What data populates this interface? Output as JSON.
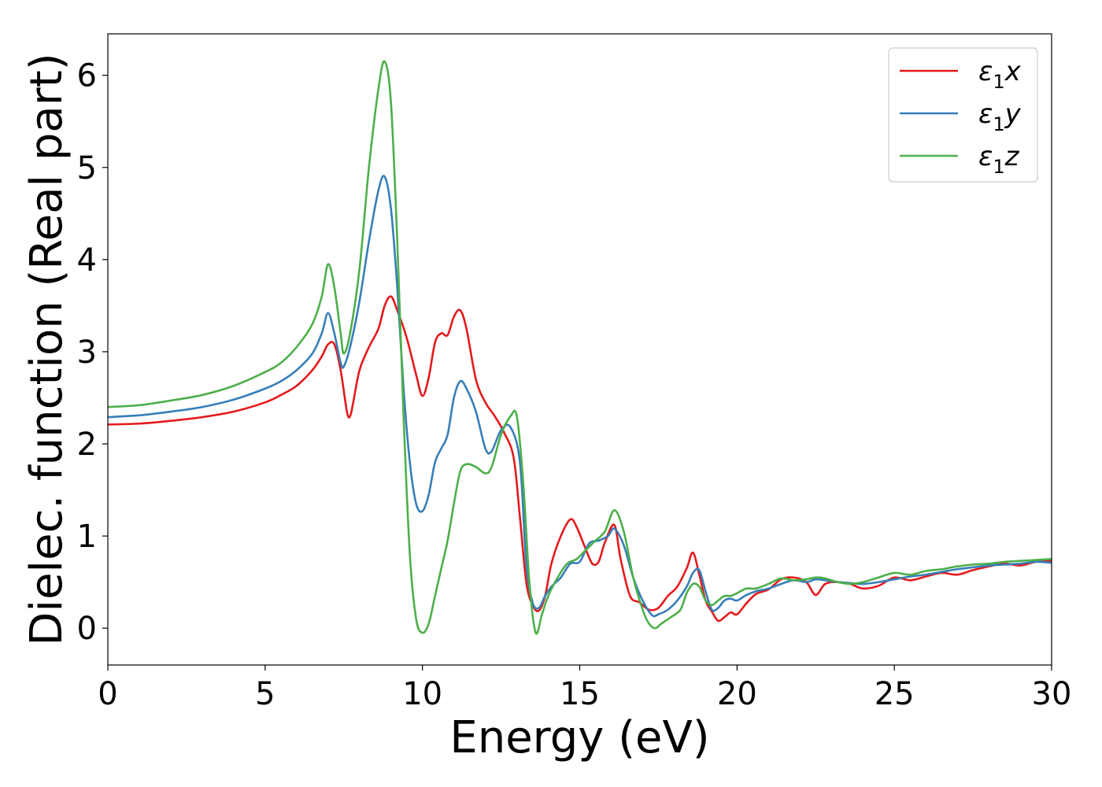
{
  "chart_data": {
    "type": "line",
    "title": "",
    "xlabel": "Energy (eV)",
    "ylabel": "Dielec. function (Real part)",
    "xlim": [
      0,
      30
    ],
    "ylim": [
      -0.4,
      6.45
    ],
    "xticks": [
      0,
      5,
      10,
      15,
      20,
      25,
      30
    ],
    "yticks": [
      0,
      1,
      2,
      3,
      4,
      5,
      6
    ],
    "grid": false,
    "legend_position": "top-right",
    "series": [
      {
        "name": "ε1x",
        "legend_base": "ε",
        "legend_sub": "1",
        "legend_var": "x",
        "color": "#e41a1c",
        "x": [
          0,
          1,
          2,
          3,
          4,
          5,
          5.5,
          6,
          6.5,
          6.8,
          7.0,
          7.2,
          7.4,
          7.6,
          7.7,
          7.8,
          8.0,
          8.3,
          8.6,
          8.8,
          9.0,
          9.2,
          9.5,
          9.8,
          10.0,
          10.2,
          10.4,
          10.6,
          10.8,
          11.0,
          11.2,
          11.4,
          11.7,
          12.0,
          12.3,
          12.6,
          12.9,
          13.1,
          13.3,
          13.5,
          13.7,
          13.9,
          14.1,
          14.4,
          14.7,
          14.9,
          15.2,
          15.4,
          15.6,
          15.8,
          16.1,
          16.3,
          16.6,
          16.9,
          17.2,
          17.5,
          17.8,
          18.1,
          18.4,
          18.6,
          18.8,
          19.0,
          19.2,
          19.4,
          19.6,
          19.8,
          20.0,
          20.3,
          20.6,
          21.0,
          21.4,
          21.8,
          22.2,
          22.5,
          22.8,
          23.2,
          23.6,
          24.0,
          24.5,
          25.0,
          25.5,
          26.0,
          26.5,
          27.0,
          27.5,
          28.0,
          28.5,
          29.0,
          29.5,
          30.0
        ],
        "y": [
          2.21,
          2.22,
          2.25,
          2.29,
          2.35,
          2.45,
          2.53,
          2.63,
          2.8,
          2.95,
          3.08,
          3.08,
          2.8,
          2.35,
          2.3,
          2.45,
          2.8,
          3.05,
          3.25,
          3.5,
          3.6,
          3.45,
          3.15,
          2.75,
          2.52,
          2.72,
          3.1,
          3.2,
          3.18,
          3.38,
          3.45,
          3.25,
          2.7,
          2.45,
          2.3,
          2.12,
          1.85,
          1.2,
          0.5,
          0.25,
          0.19,
          0.35,
          0.7,
          1.0,
          1.18,
          1.1,
          0.85,
          0.7,
          0.72,
          0.93,
          1.12,
          0.75,
          0.35,
          0.28,
          0.2,
          0.22,
          0.35,
          0.45,
          0.65,
          0.82,
          0.58,
          0.3,
          0.18,
          0.08,
          0.12,
          0.17,
          0.15,
          0.27,
          0.37,
          0.42,
          0.53,
          0.55,
          0.5,
          0.36,
          0.48,
          0.5,
          0.48,
          0.43,
          0.46,
          0.55,
          0.52,
          0.56,
          0.6,
          0.58,
          0.63,
          0.67,
          0.7,
          0.68,
          0.72,
          0.73
        ]
      },
      {
        "name": "ε1y",
        "legend_base": "ε",
        "legend_sub": "1",
        "legend_var": "y",
        "color": "#377eb8",
        "x": [
          0,
          1,
          2,
          3,
          4,
          5,
          5.5,
          6,
          6.5,
          6.8,
          7.0,
          7.2,
          7.4,
          7.5,
          7.7,
          8.0,
          8.3,
          8.6,
          8.8,
          9.0,
          9.2,
          9.4,
          9.6,
          9.8,
          10.0,
          10.2,
          10.4,
          10.6,
          10.8,
          11.0,
          11.2,
          11.4,
          11.7,
          12.0,
          12.2,
          12.5,
          12.8,
          13.1,
          13.3,
          13.5,
          13.7,
          13.9,
          14.1,
          14.4,
          14.7,
          15.0,
          15.3,
          15.6,
          15.9,
          16.1,
          16.4,
          16.7,
          17.0,
          17.3,
          17.5,
          17.8,
          18.1,
          18.4,
          18.6,
          18.8,
          19.0,
          19.2,
          19.4,
          19.6,
          19.8,
          20.0,
          20.3,
          20.6,
          21.0,
          21.4,
          21.8,
          22.2,
          22.5,
          22.8,
          23.2,
          23.6,
          24.0,
          24.5,
          25.0,
          25.5,
          26.0,
          26.5,
          27.0,
          27.5,
          28.0,
          28.5,
          29.0,
          29.5,
          30.0
        ],
        "y": [
          2.29,
          2.31,
          2.35,
          2.4,
          2.48,
          2.6,
          2.68,
          2.8,
          2.98,
          3.2,
          3.42,
          3.2,
          2.88,
          2.84,
          3.05,
          3.55,
          4.2,
          4.75,
          4.9,
          4.55,
          3.7,
          2.6,
          1.8,
          1.35,
          1.27,
          1.45,
          1.8,
          1.95,
          2.1,
          2.5,
          2.68,
          2.6,
          2.35,
          1.95,
          1.92,
          2.15,
          2.18,
          1.8,
          0.7,
          0.28,
          0.22,
          0.35,
          0.45,
          0.55,
          0.7,
          0.72,
          0.92,
          0.95,
          1.0,
          1.08,
          0.9,
          0.55,
          0.3,
          0.14,
          0.15,
          0.2,
          0.3,
          0.45,
          0.6,
          0.63,
          0.4,
          0.2,
          0.22,
          0.3,
          0.32,
          0.3,
          0.36,
          0.4,
          0.43,
          0.48,
          0.52,
          0.5,
          0.53,
          0.52,
          0.5,
          0.49,
          0.48,
          0.5,
          0.53,
          0.56,
          0.58,
          0.61,
          0.64,
          0.66,
          0.68,
          0.69,
          0.7,
          0.72,
          0.71
        ]
      },
      {
        "name": "ε1z",
        "legend_base": "ε",
        "legend_sub": "1",
        "legend_var": "z",
        "color": "#4daf4a",
        "x": [
          0,
          1,
          2,
          3,
          4,
          5,
          5.5,
          6,
          6.5,
          6.8,
          7.0,
          7.2,
          7.4,
          7.5,
          7.7,
          8.0,
          8.3,
          8.6,
          8.8,
          9.0,
          9.2,
          9.4,
          9.6,
          9.8,
          10.0,
          10.2,
          10.4,
          10.6,
          10.8,
          11.0,
          11.2,
          11.4,
          11.7,
          12.0,
          12.2,
          12.5,
          12.8,
          13.0,
          13.2,
          13.4,
          13.6,
          13.8,
          14.0,
          14.3,
          14.6,
          14.9,
          15.2,
          15.5,
          15.8,
          16.1,
          16.4,
          16.7,
          17.0,
          17.2,
          17.4,
          17.6,
          17.9,
          18.2,
          18.4,
          18.6,
          18.8,
          19.0,
          19.2,
          19.4,
          19.6,
          19.8,
          20.0,
          20.3,
          20.6,
          21.0,
          21.4,
          21.8,
          22.2,
          22.5,
          22.8,
          23.2,
          23.6,
          24.0,
          24.5,
          25.0,
          25.5,
          26.0,
          26.5,
          27.0,
          27.5,
          28.0,
          28.5,
          29.0,
          29.5,
          30.0
        ],
        "y": [
          2.4,
          2.42,
          2.47,
          2.53,
          2.63,
          2.78,
          2.88,
          3.05,
          3.3,
          3.6,
          3.95,
          3.7,
          3.2,
          2.98,
          3.2,
          3.9,
          5.0,
          5.85,
          6.15,
          5.7,
          4.2,
          2.3,
          0.8,
          0.1,
          -0.05,
          0.05,
          0.35,
          0.65,
          0.95,
          1.35,
          1.7,
          1.78,
          1.75,
          1.68,
          1.75,
          2.1,
          2.3,
          2.3,
          1.6,
          0.5,
          -0.05,
          0.15,
          0.35,
          0.55,
          0.7,
          0.75,
          0.85,
          0.95,
          1.05,
          1.28,
          1.05,
          0.55,
          0.2,
          0.05,
          0.0,
          0.05,
          0.12,
          0.2,
          0.38,
          0.48,
          0.45,
          0.3,
          0.25,
          0.3,
          0.35,
          0.35,
          0.38,
          0.43,
          0.43,
          0.48,
          0.54,
          0.52,
          0.53,
          0.55,
          0.54,
          0.5,
          0.48,
          0.5,
          0.55,
          0.6,
          0.58,
          0.62,
          0.64,
          0.67,
          0.69,
          0.7,
          0.72,
          0.73,
          0.74,
          0.75
        ]
      }
    ]
  }
}
